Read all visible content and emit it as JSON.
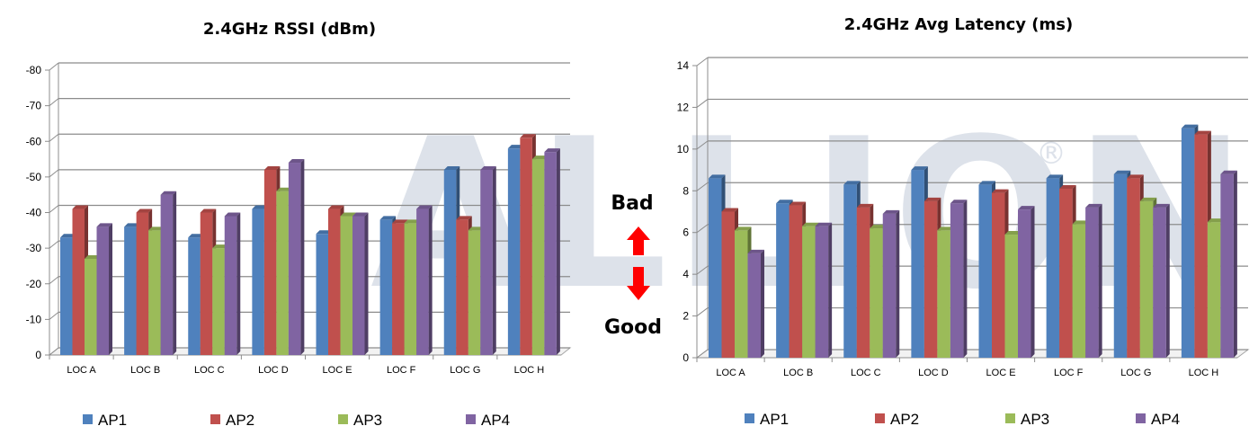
{
  "watermark": "ALLION",
  "watermark_mark": "®",
  "indicator": {
    "bad_label": "Bad",
    "good_label": "Good",
    "arrow_color": "#ff0000"
  },
  "series_colors": {
    "AP1": "#4f81bd",
    "AP2": "#c0504d",
    "AP3": "#9bbb59",
    "AP4": "#8064a2"
  },
  "chart_data": [
    {
      "type": "bar",
      "title": "2.4GHz RSSI (dBm)",
      "categories": [
        "LOC A",
        "LOC B",
        "LOC C",
        "LOC D",
        "LOC E",
        "LOC F",
        "LOC G",
        "LOC H"
      ],
      "ylim": [
        0,
        -80
      ],
      "yticks": [
        0,
        -10,
        -20,
        -30,
        -40,
        -50,
        -60,
        -70,
        -80
      ],
      "ytick_labels": [
        "0",
        "-10",
        "-20",
        "-30",
        "-40",
        "-50",
        "-60",
        "-70",
        "-80"
      ],
      "grid": true,
      "legend_position": "bottom",
      "series": [
        {
          "name": "AP1",
          "values": [
            -33,
            -36,
            -33,
            -41,
            -34,
            -38,
            -52,
            -58
          ]
        },
        {
          "name": "AP2",
          "values": [
            -41,
            -40,
            -40,
            -52,
            -41,
            -37,
            -38,
            -61
          ]
        },
        {
          "name": "AP3",
          "values": [
            -27,
            -35,
            -30,
            -46,
            -39,
            -37,
            -35,
            -55
          ]
        },
        {
          "name": "AP4",
          "values": [
            -36,
            -45,
            -39,
            -54,
            -39,
            -41,
            -52,
            -57
          ]
        }
      ]
    },
    {
      "type": "bar",
      "title": "2.4GHz Avg Latency (ms)",
      "categories": [
        "LOC A",
        "LOC B",
        "LOC C",
        "LOC D",
        "LOC E",
        "LOC F",
        "LOC G",
        "LOC H"
      ],
      "ylim": [
        0,
        14
      ],
      "yticks": [
        0,
        2,
        4,
        6,
        8,
        10,
        12,
        14
      ],
      "ytick_labels": [
        "0",
        "2",
        "4",
        "6",
        "8",
        "10",
        "12",
        "14"
      ],
      "grid": true,
      "legend_position": "bottom",
      "series": [
        {
          "name": "AP1",
          "values": [
            8.6,
            7.4,
            8.3,
            9.0,
            8.3,
            8.6,
            8.8,
            11.0
          ]
        },
        {
          "name": "AP2",
          "values": [
            7.0,
            7.3,
            7.2,
            7.5,
            7.9,
            8.1,
            8.6,
            10.7
          ]
        },
        {
          "name": "AP3",
          "values": [
            6.1,
            6.3,
            6.2,
            6.1,
            5.9,
            6.4,
            7.5,
            6.5
          ]
        },
        {
          "name": "AP4",
          "values": [
            5.0,
            6.3,
            6.9,
            7.4,
            7.1,
            7.2,
            7.2,
            8.8
          ]
        }
      ]
    }
  ]
}
